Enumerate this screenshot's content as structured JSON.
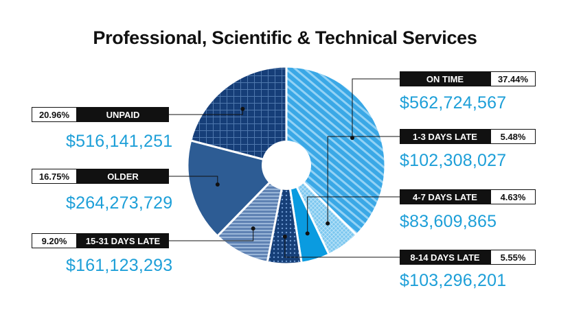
{
  "chart_data": {
    "type": "pie",
    "title": "Professional, Scientific & Technical Services",
    "donut": true,
    "slices": [
      {
        "label": "ON TIME",
        "percent_label": "37.44%",
        "value": 37.44,
        "amount": "$562,724,567",
        "color": "#3aa8e6",
        "pattern": "diagonal-stripes"
      },
      {
        "label": "1-3 DAYS LATE",
        "percent_label": "5.48%",
        "value": 5.48,
        "amount": "$102,308,027",
        "color": "#8fd0f2",
        "pattern": "crosshatch"
      },
      {
        "label": "4-7 DAYS LATE",
        "percent_label": "4.63%",
        "value": 4.63,
        "amount": "$83,609,865",
        "color": "#0a9be0",
        "pattern": "solid"
      },
      {
        "label": "8-14 DAYS LATE",
        "percent_label": "5.55%",
        "value": 5.55,
        "amount": "$103,296,201",
        "color": "#163f78",
        "pattern": "dots"
      },
      {
        "label": "15-31 DAYS LATE",
        "percent_label": "9.20%",
        "value": 9.2,
        "amount": "$161,123,293",
        "color": "#6d8fbd",
        "pattern": "horizontal-lines"
      },
      {
        "label": "OLDER",
        "percent_label": "16.75%",
        "value": 16.75,
        "amount": "$264,273,729",
        "color": "#2d5c94",
        "pattern": "solid"
      },
      {
        "label": "UNPAID",
        "percent_label": "20.96%",
        "value": 20.96,
        "amount": "$516,141,251",
        "color": "#163e78",
        "pattern": "grid"
      }
    ]
  }
}
